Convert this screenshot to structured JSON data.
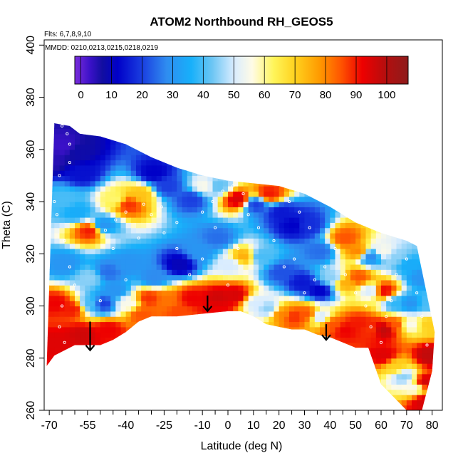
{
  "chart_data": {
    "type": "heatmap",
    "title": "ATOM2 Northbound RH_GEOS5",
    "subtitle_flights": "Flts: 6,7,8,9,10",
    "subtitle_dates": "MMDD: 0210,0213,0215,0218,0219",
    "xlabel": "Latitude (deg N)",
    "ylabel": "Theta (C)",
    "xlim": [
      -72,
      84
    ],
    "ylim": [
      260,
      402
    ],
    "x_ticks_labeled": [
      -70,
      -55,
      -40,
      -25,
      -10,
      0,
      10,
      20,
      30,
      40,
      50,
      60,
      70,
      80
    ],
    "x_ticks_minor": [
      -65,
      -60,
      -50,
      -45,
      -35,
      -30,
      -20,
      -15,
      -5,
      5,
      15,
      25,
      35,
      45,
      55,
      65,
      75
    ],
    "y_ticks": [
      260,
      280,
      300,
      320,
      340,
      360,
      380,
      400
    ],
    "colorbar": {
      "min": -2,
      "max": 107,
      "ticks": [
        0,
        10,
        20,
        30,
        40,
        50,
        60,
        70,
        80,
        90,
        100
      ],
      "stops": [
        {
          "v": -2,
          "c": "#7b2ddc"
        },
        {
          "v": 3,
          "c": "#3b11c8"
        },
        {
          "v": 7,
          "c": "#120ea0"
        },
        {
          "v": 12,
          "c": "#0000c8"
        },
        {
          "v": 20,
          "c": "#1a3ee0"
        },
        {
          "v": 28,
          "c": "#2f8cf0"
        },
        {
          "v": 36,
          "c": "#17b0fa"
        },
        {
          "v": 43,
          "c": "#6ec6f4"
        },
        {
          "v": 50,
          "c": "#d8ecff"
        },
        {
          "v": 56,
          "c": "#fffbe6"
        },
        {
          "v": 63,
          "c": "#fff55a"
        },
        {
          "v": 70,
          "c": "#ffd21e"
        },
        {
          "v": 78,
          "c": "#ff9a00"
        },
        {
          "v": 85,
          "c": "#ff5500"
        },
        {
          "v": 92,
          "c": "#ee0000"
        },
        {
          "v": 100,
          "c": "#b20f0f"
        },
        {
          "v": 107,
          "c": "#8e1c1c"
        }
      ]
    },
    "upper_boundary": [
      [
        -68,
        370
      ],
      [
        -62,
        369
      ],
      [
        -58,
        366
      ],
      [
        -50,
        365
      ],
      [
        -40,
        362
      ],
      [
        -30,
        357
      ],
      [
        -20,
        353
      ],
      [
        -10,
        350
      ],
      [
        0,
        348
      ],
      [
        10,
        347
      ],
      [
        20,
        346
      ],
      [
        30,
        343
      ],
      [
        40,
        338
      ],
      [
        50,
        332
      ],
      [
        60,
        328
      ],
      [
        70,
        325
      ],
      [
        74,
        323
      ]
    ],
    "lower_boundary": [
      [
        -71,
        277
      ],
      [
        -68,
        281
      ],
      [
        -60,
        285
      ],
      [
        -50,
        285
      ],
      [
        -45,
        287
      ],
      [
        -40,
        290
      ],
      [
        -35,
        294
      ],
      [
        -30,
        296
      ],
      [
        -20,
        296
      ],
      [
        -10,
        297
      ],
      [
        0,
        298
      ],
      [
        5,
        298
      ],
      [
        10,
        296
      ],
      [
        15,
        293
      ],
      [
        20,
        292
      ],
      [
        25,
        291
      ],
      [
        30,
        291
      ],
      [
        35,
        289
      ],
      [
        40,
        288
      ],
      [
        45,
        286
      ],
      [
        50,
        284
      ],
      [
        55,
        284
      ],
      [
        60,
        270
      ],
      [
        65,
        265
      ],
      [
        70,
        260
      ],
      [
        76,
        260
      ],
      [
        80,
        275
      ],
      [
        81,
        290
      ]
    ],
    "rh_field": [
      [
        -70,
        355,
        5
      ],
      [
        -65,
        360,
        3
      ],
      [
        -60,
        358,
        8
      ],
      [
        -58,
        350,
        14
      ],
      [
        -65,
        340,
        40
      ],
      [
        -60,
        335,
        35
      ],
      [
        -55,
        328,
        90
      ],
      [
        -50,
        330,
        30
      ],
      [
        -45,
        340,
        62
      ],
      [
        -40,
        338,
        88
      ],
      [
        -35,
        342,
        72
      ],
      [
        -30,
        350,
        12
      ],
      [
        -25,
        345,
        20
      ],
      [
        -15,
        340,
        20
      ],
      [
        -10,
        345,
        55
      ],
      [
        -5,
        345,
        42
      ],
      [
        3,
        340,
        95
      ],
      [
        10,
        338,
        20
      ],
      [
        15,
        342,
        90
      ],
      [
        20,
        335,
        15
      ],
      [
        25,
        330,
        12
      ],
      [
        30,
        330,
        18
      ],
      [
        35,
        320,
        25
      ],
      [
        45,
        325,
        85
      ],
      [
        50,
        320,
        80
      ],
      [
        55,
        318,
        28
      ],
      [
        60,
        320,
        55
      ],
      [
        65,
        318,
        45
      ],
      [
        70,
        315,
        35
      ],
      [
        75,
        310,
        30
      ],
      [
        -65,
        315,
        30
      ],
      [
        -55,
        310,
        45
      ],
      [
        -48,
        312,
        25
      ],
      [
        -40,
        315,
        30
      ],
      [
        -30,
        310,
        28
      ],
      [
        -20,
        315,
        10
      ],
      [
        -12,
        320,
        30
      ],
      [
        -5,
        325,
        25
      ],
      [
        0,
        315,
        50
      ],
      [
        5,
        318,
        75
      ],
      [
        12,
        318,
        40
      ],
      [
        20,
        312,
        22
      ],
      [
        28,
        308,
        15
      ],
      [
        35,
        305,
        12
      ],
      [
        40,
        310,
        45
      ],
      [
        45,
        308,
        75
      ],
      [
        50,
        310,
        85
      ],
      [
        55,
        305,
        50
      ],
      [
        60,
        305,
        92
      ],
      [
        65,
        300,
        38
      ],
      [
        70,
        300,
        30
      ],
      [
        78,
        300,
        40
      ],
      [
        -68,
        300,
        92
      ],
      [
        -62,
        298,
        90
      ],
      [
        -55,
        300,
        40
      ],
      [
        -50,
        300,
        20
      ],
      [
        -45,
        305,
        30
      ],
      [
        -40,
        300,
        55
      ],
      [
        -32,
        302,
        88
      ],
      [
        -25,
        301,
        82
      ],
      [
        -15,
        302,
        92
      ],
      [
        -5,
        302,
        96
      ],
      [
        2,
        303,
        95
      ],
      [
        10,
        300,
        50
      ],
      [
        15,
        298,
        45
      ],
      [
        20,
        296,
        80
      ],
      [
        25,
        295,
        88
      ],
      [
        30,
        296,
        85
      ],
      [
        35,
        295,
        50
      ],
      [
        40,
        292,
        85
      ],
      [
        45,
        290,
        92
      ],
      [
        50,
        292,
        90
      ],
      [
        55,
        290,
        88
      ],
      [
        60,
        290,
        98
      ],
      [
        65,
        292,
        85
      ],
      [
        70,
        292,
        55
      ],
      [
        78,
        292,
        70
      ],
      [
        -68,
        285,
        94
      ],
      [
        -58,
        288,
        96
      ],
      [
        -48,
        290,
        92
      ],
      [
        -35,
        296,
        85
      ],
      [
        -20,
        297,
        86
      ],
      [
        -5,
        298,
        92
      ],
      [
        60,
        280,
        94
      ],
      [
        65,
        276,
        70
      ],
      [
        68,
        272,
        45
      ],
      [
        72,
        268,
        55
      ],
      [
        76,
        270,
        96
      ],
      [
        78,
        280,
        98
      ],
      [
        76,
        262,
        95
      ]
    ],
    "arrows": [
      {
        "x": -54,
        "y_from": 294,
        "y_to": 283
      },
      {
        "x": -8,
        "y_from": 304,
        "y_to": 298
      },
      {
        "x": 38.5,
        "y_from": 293,
        "y_to": 287
      }
    ],
    "observations": [
      [
        -65,
        369
      ],
      [
        -63,
        366
      ],
      [
        -62,
        362
      ],
      [
        -62,
        355
      ],
      [
        -66,
        350
      ],
      [
        -68,
        340
      ],
      [
        -67,
        335
      ],
      [
        -64,
        325
      ],
      [
        -62,
        315
      ],
      [
        -60,
        308
      ],
      [
        -65,
        300
      ],
      [
        -66,
        292
      ],
      [
        -64,
        286
      ],
      [
        -60,
        281
      ],
      [
        -50,
        302
      ],
      [
        -45,
        322
      ],
      [
        -40,
        310
      ],
      [
        -35,
        326
      ],
      [
        -30,
        335
      ],
      [
        -25,
        328
      ],
      [
        -20,
        322
      ],
      [
        -15,
        312
      ],
      [
        -10,
        318
      ],
      [
        -5,
        330
      ],
      [
        0,
        308
      ],
      [
        4,
        322
      ],
      [
        8,
        335
      ],
      [
        12,
        330
      ],
      [
        18,
        325
      ],
      [
        22,
        315
      ],
      [
        26,
        318
      ],
      [
        30,
        305
      ],
      [
        34,
        310
      ],
      [
        38,
        315
      ],
      [
        42,
        322
      ],
      [
        46,
        312
      ],
      [
        50,
        305
      ],
      [
        54,
        300
      ],
      [
        56,
        292
      ],
      [
        60,
        286
      ],
      [
        62,
        296
      ],
      [
        64,
        302
      ],
      [
        66,
        312
      ],
      [
        70,
        318
      ],
      [
        74,
        305
      ],
      [
        76,
        296
      ],
      [
        78,
        285
      ],
      [
        80,
        300
      ],
      [
        82,
        311
      ],
      [
        -10,
        336
      ],
      [
        -6,
        340
      ],
      [
        -2,
        344
      ],
      [
        2,
        346
      ],
      [
        6,
        343
      ],
      [
        -20,
        332
      ],
      [
        -26,
        338
      ],
      [
        -33,
        339
      ],
      [
        -40,
        336
      ],
      [
        -44,
        333
      ],
      [
        -48,
        329
      ],
      [
        24,
        340
      ],
      [
        28,
        336
      ],
      [
        32,
        330
      ]
    ]
  }
}
